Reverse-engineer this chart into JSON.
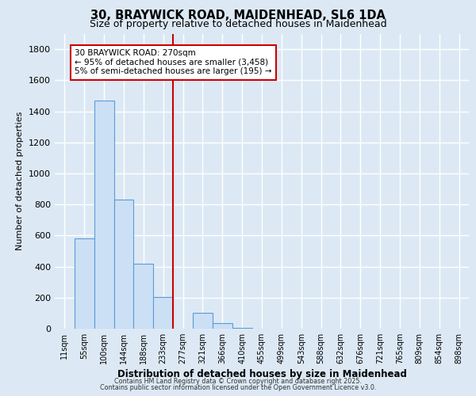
{
  "title_line1": "30, BRAYWICK ROAD, MAIDENHEAD, SL6 1DA",
  "title_line2": "Size of property relative to detached houses in Maidenhead",
  "xlabel": "Distribution of detached houses by size in Maidenhead",
  "ylabel": "Number of detached properties",
  "footer1": "Contains HM Land Registry data © Crown copyright and database right 2025.",
  "footer2": "Contains public sector information licensed under the Open Government Licence v3.0.",
  "legend_title": "30 BRAYWICK ROAD: 270sqm",
  "legend_line1": "← 95% of detached houses are smaller (3,458)",
  "legend_line2": "5% of semi-detached houses are larger (195) →",
  "bar_color": "#cce0f5",
  "bar_edge_color": "#5b9bd5",
  "redline_color": "#cc0000",
  "background_color": "#dce9f5",
  "plot_bg_color": "#dce9f5",
  "grid_color": "#ffffff",
  "categories": [
    "11sqm",
    "55sqm",
    "100sqm",
    "144sqm",
    "188sqm",
    "233sqm",
    "277sqm",
    "321sqm",
    "366sqm",
    "410sqm",
    "455sqm",
    "499sqm",
    "543sqm",
    "588sqm",
    "632sqm",
    "676sqm",
    "721sqm",
    "765sqm",
    "809sqm",
    "854sqm",
    "898sqm"
  ],
  "values": [
    0,
    580,
    1470,
    830,
    420,
    205,
    0,
    100,
    35,
    5,
    1,
    0,
    0,
    0,
    0,
    0,
    0,
    0,
    0,
    0,
    0
  ],
  "redline_index": 6,
  "ylim": [
    0,
    1900
  ],
  "yticks": [
    0,
    200,
    400,
    600,
    800,
    1000,
    1200,
    1400,
    1600,
    1800
  ]
}
